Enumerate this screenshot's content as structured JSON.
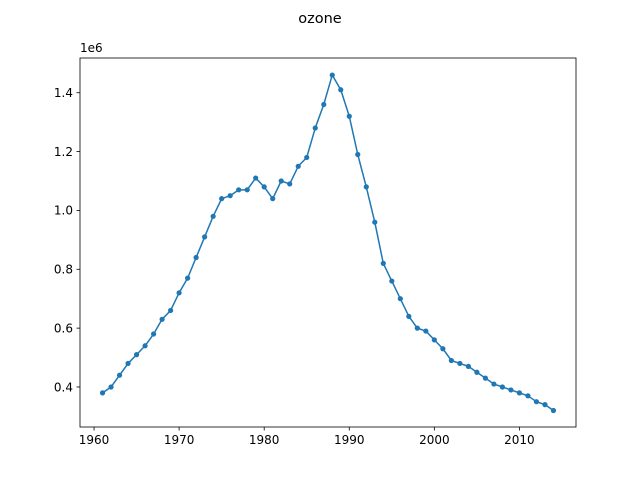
{
  "chart_data": {
    "type": "line",
    "title": "ozone",
    "xlabel": "",
    "ylabel": "",
    "y_offset_text": "1e6",
    "xlim": [
      1958.35,
      2016.65
    ],
    "ylim": [
      264000,
      1518000
    ],
    "xticks": [
      1960,
      1970,
      1980,
      1990,
      2000,
      2010
    ],
    "yticks": [
      400000,
      600000,
      800000,
      1000000,
      1200000,
      1400000
    ],
    "ytick_labels": [
      "0.4",
      "0.6",
      "0.8",
      "1.0",
      "1.2",
      "1.4"
    ],
    "xtick_labels": [
      "1960",
      "1970",
      "1980",
      "1990",
      "2000",
      "2010"
    ],
    "grid": false,
    "color": "#1f77b4",
    "series": [
      {
        "x": [
          1961,
          1962,
          1963,
          1964,
          1965,
          1966,
          1967,
          1968,
          1969,
          1970,
          1971,
          1972,
          1973,
          1974,
          1975,
          1976,
          1977,
          1978,
          1979,
          1980,
          1981,
          1982,
          1983,
          1984,
          1985,
          1986,
          1987,
          1988,
          1989,
          1990,
          1991,
          1992,
          1993,
          1994,
          1995,
          1996,
          1997,
          1998,
          1999,
          2000,
          2001,
          2002,
          2003,
          2004,
          2005,
          2006,
          2007,
          2008,
          2009,
          2010,
          2011,
          2012,
          2013,
          2014
        ],
        "values": [
          380000,
          400000,
          440000,
          480000,
          510000,
          540000,
          580000,
          630000,
          660000,
          720000,
          770000,
          840000,
          910000,
          980000,
          1040000,
          1050000,
          1070000,
          1070000,
          1110000,
          1080000,
          1040000,
          1100000,
          1090000,
          1150000,
          1180000,
          1280000,
          1360000,
          1460000,
          1410000,
          1320000,
          1190000,
          1080000,
          960000,
          820000,
          760000,
          700000,
          640000,
          600000,
          590000,
          560000,
          530000,
          490000,
          480000,
          470000,
          450000,
          430000,
          410000,
          400000,
          390000,
          380000,
          370000,
          350000,
          340000,
          320000
        ]
      }
    ]
  }
}
